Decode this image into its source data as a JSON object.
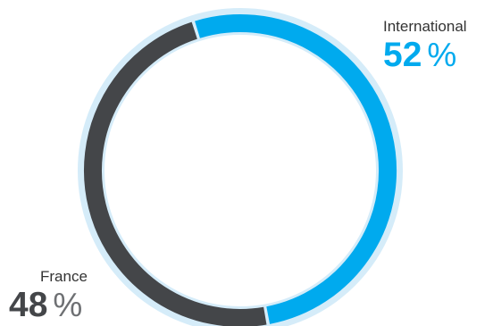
{
  "chart_data": {
    "type": "pie",
    "categories": [
      "International",
      "France"
    ],
    "values": [
      52,
      48
    ],
    "unit": "%",
    "colors": [
      "#00aaee",
      "#444649"
    ],
    "track_color": "#d5ecf9",
    "inner_ring_color": "#ffffff"
  },
  "callouts": {
    "international": {
      "label": "International",
      "value": "52",
      "unit": "%"
    },
    "france": {
      "label": "France",
      "value": "48",
      "unit": "%"
    }
  }
}
